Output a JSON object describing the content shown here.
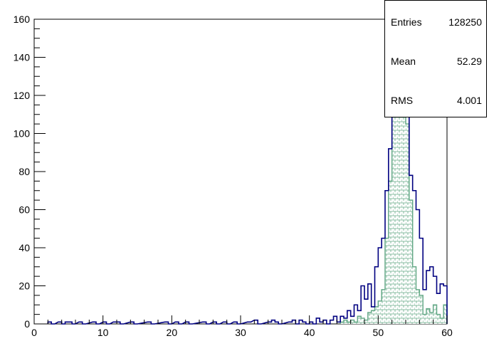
{
  "chart_data": {
    "type": "histogram",
    "title": "",
    "xlabel": "",
    "ylabel": "",
    "xlim": [
      0,
      60
    ],
    "ylim": [
      0,
      160
    ],
    "x_ticks": [
      0,
      10,
      20,
      30,
      40,
      50,
      60
    ],
    "y_ticks": [
      0,
      20,
      40,
      60,
      80,
      100,
      120,
      140,
      160
    ],
    "bin_width": 0.5,
    "grid": false,
    "series": [
      {
        "style": "outline",
        "color": "#000080",
        "bins": [
          [
            2.0,
            1
          ],
          [
            2.5,
            0
          ],
          [
            3.5,
            1
          ],
          [
            4.0,
            0
          ],
          [
            4.5,
            1
          ],
          [
            5.0,
            1
          ],
          [
            5.5,
            0
          ],
          [
            6.5,
            1
          ],
          [
            7.0,
            0
          ],
          [
            8.5,
            1
          ],
          [
            9.0,
            0
          ],
          [
            10.0,
            1
          ],
          [
            10.5,
            0
          ],
          [
            11.5,
            1
          ],
          [
            12.0,
            1
          ],
          [
            12.5,
            0
          ],
          [
            14.0,
            1
          ],
          [
            14.5,
            0
          ],
          [
            16.5,
            1
          ],
          [
            17.0,
            0
          ],
          [
            19.0,
            1
          ],
          [
            19.5,
            0
          ],
          [
            20.5,
            1
          ],
          [
            21.0,
            0
          ],
          [
            22.0,
            1
          ],
          [
            22.5,
            0
          ],
          [
            24.5,
            1
          ],
          [
            25.0,
            0
          ],
          [
            26.0,
            1
          ],
          [
            26.5,
            0
          ],
          [
            27.5,
            1
          ],
          [
            28.0,
            0
          ],
          [
            29.0,
            1
          ],
          [
            29.5,
            0
          ],
          [
            31.0,
            1
          ],
          [
            32.0,
            2
          ],
          [
            32.5,
            0
          ],
          [
            34.0,
            1
          ],
          [
            34.5,
            2
          ],
          [
            35.0,
            1
          ],
          [
            35.5,
            0
          ],
          [
            37.0,
            1
          ],
          [
            37.5,
            2
          ],
          [
            38.0,
            0
          ],
          [
            38.5,
            2
          ],
          [
            39.0,
            1
          ],
          [
            39.5,
            0
          ],
          [
            40.0,
            1
          ],
          [
            40.5,
            0
          ],
          [
            41.0,
            3
          ],
          [
            41.5,
            1
          ],
          [
            42.0,
            2
          ],
          [
            42.5,
            0
          ],
          [
            43.0,
            2
          ],
          [
            43.5,
            4
          ],
          [
            44.0,
            1
          ],
          [
            44.5,
            4
          ],
          [
            45.0,
            3
          ],
          [
            45.5,
            7
          ],
          [
            46.0,
            4
          ],
          [
            46.5,
            10
          ],
          [
            47.0,
            7
          ],
          [
            47.5,
            20
          ],
          [
            48.0,
            13
          ],
          [
            48.5,
            21
          ],
          [
            49.0,
            9
          ],
          [
            49.5,
            30
          ],
          [
            50.0,
            40
          ],
          [
            50.5,
            45
          ],
          [
            51.0,
            70
          ],
          [
            51.5,
            92
          ],
          [
            52.0,
            130
          ],
          [
            52.5,
            118
          ],
          [
            53.0,
            130
          ],
          [
            53.5,
            112
          ],
          [
            54.0,
            120
          ],
          [
            54.5,
            78
          ],
          [
            55.0,
            70
          ],
          [
            55.5,
            60
          ],
          [
            56.0,
            45
          ],
          [
            56.5,
            18
          ],
          [
            57.0,
            28
          ],
          [
            57.5,
            30
          ],
          [
            58.0,
            25
          ],
          [
            58.5,
            16
          ],
          [
            59.0,
            21
          ],
          [
            59.5,
            20
          ]
        ]
      },
      {
        "style": "hatched",
        "color": "#66aa88",
        "bins": [
          [
            44.5,
            1
          ],
          [
            45.0,
            2
          ],
          [
            45.5,
            1
          ],
          [
            46.0,
            2
          ],
          [
            46.5,
            1
          ],
          [
            47.0,
            4
          ],
          [
            47.5,
            3
          ],
          [
            48.0,
            2
          ],
          [
            48.5,
            6
          ],
          [
            49.0,
            7
          ],
          [
            49.5,
            9
          ],
          [
            50.0,
            12
          ],
          [
            50.5,
            18
          ],
          [
            51.0,
            45
          ],
          [
            51.5,
            75
          ],
          [
            52.0,
            110
          ],
          [
            52.5,
            118
          ],
          [
            53.0,
            120
          ],
          [
            53.5,
            110
          ],
          [
            54.0,
            105
          ],
          [
            54.5,
            65
          ],
          [
            55.0,
            30
          ],
          [
            55.5,
            18
          ],
          [
            56.0,
            15
          ],
          [
            56.5,
            5
          ],
          [
            57.0,
            8
          ],
          [
            57.5,
            6
          ],
          [
            58.0,
            10
          ],
          [
            58.5,
            5
          ],
          [
            59.0,
            3
          ],
          [
            59.5,
            10
          ]
        ]
      }
    ],
    "stats": {
      "entries_label": "Entries",
      "entries_value": "128250",
      "mean_label": "Mean",
      "mean_value": "52.29",
      "rms_label": "RMS",
      "rms_value": "4.001"
    }
  }
}
